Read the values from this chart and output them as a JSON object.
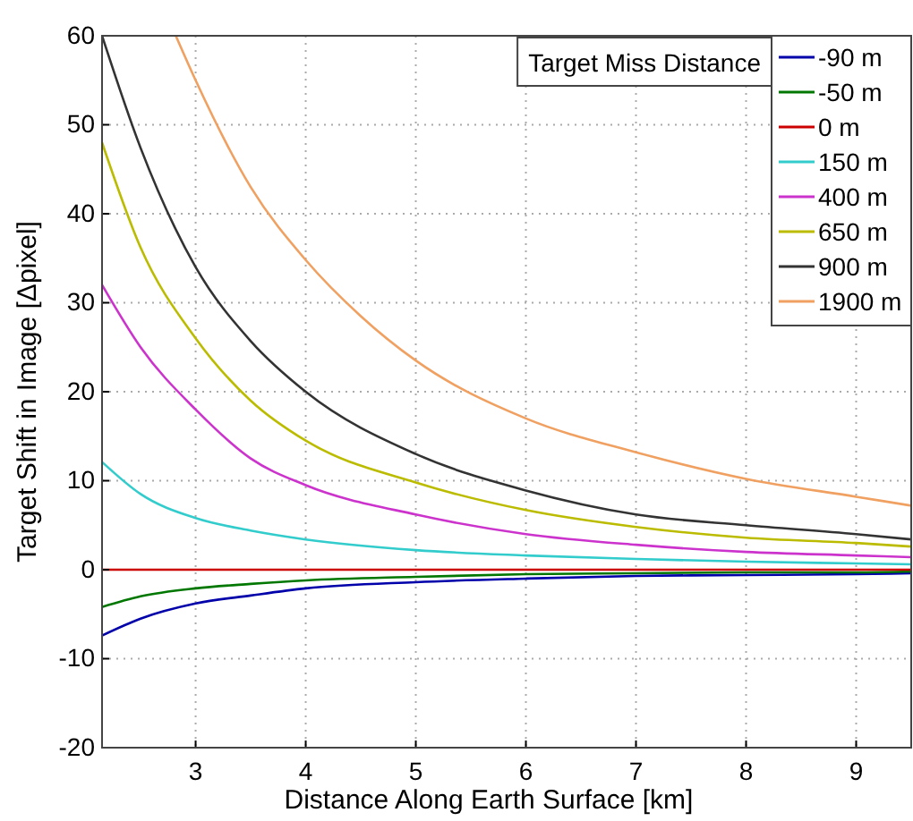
{
  "chart_data": {
    "type": "line",
    "xlabel": "Distance Along Earth Surface [km]",
    "ylabel": "Target Shift in Image [Δpixel]",
    "legend_title": "Target Miss Distance",
    "legend": "top right",
    "grid": true,
    "line_style": "solid",
    "marker": "none",
    "xlim": [
      2.15,
      9.5
    ],
    "ylim": [
      -20,
      60
    ],
    "xticks": [
      3,
      4,
      5,
      6,
      7,
      8,
      9
    ],
    "yticks": [
      -20,
      -10,
      0,
      10,
      20,
      30,
      40,
      50,
      60
    ],
    "series": [
      {
        "name": "-90 m",
        "color": "#0000aa",
        "x": [
          2.15,
          2.5,
          3,
          3.5,
          4,
          5,
          6,
          7,
          8,
          9,
          9.5
        ],
        "values": [
          -7.4,
          -5.5,
          -3.8,
          -2.9,
          -2.1,
          -1.4,
          -1.0,
          -0.7,
          -0.6,
          -0.5,
          -0.4
        ]
      },
      {
        "name": "-50 m",
        "color": "#007700",
        "x": [
          2.15,
          2.5,
          3,
          3.5,
          4,
          5,
          6,
          7,
          8,
          9,
          9.5
        ],
        "values": [
          -4.2,
          -3.0,
          -2.1,
          -1.6,
          -1.2,
          -0.8,
          -0.5,
          -0.4,
          -0.3,
          -0.3,
          -0.2
        ]
      },
      {
        "name": "0 m",
        "color": "#cc0000",
        "x": [
          2.15,
          9.5
        ],
        "values": [
          0,
          0
        ]
      },
      {
        "name": "150 m",
        "color": "#33cccc",
        "x": [
          2.15,
          2.5,
          3,
          3.5,
          4,
          5,
          6,
          7,
          8,
          9,
          9.5
        ],
        "values": [
          12.1,
          8.5,
          5.8,
          4.4,
          3.4,
          2.2,
          1.6,
          1.2,
          0.9,
          0.7,
          0.6
        ]
      },
      {
        "name": "400 m",
        "color": "#cc33cc",
        "x": [
          2.15,
          2.5,
          3,
          3.5,
          4,
          5,
          6,
          7,
          8,
          9,
          9.5
        ],
        "values": [
          32,
          25,
          18,
          12.5,
          9.5,
          6.2,
          4.0,
          2.8,
          2.0,
          1.6,
          1.4
        ]
      },
      {
        "name": "650 m",
        "color": "#bbbb00",
        "x": [
          2.15,
          2.5,
          3,
          3.5,
          4,
          5,
          6,
          7,
          8,
          9,
          9.5
        ],
        "values": [
          48,
          36.2,
          26,
          19,
          14.5,
          9.8,
          6.7,
          4.8,
          3.6,
          3.0,
          2.6
        ]
      },
      {
        "name": "900 m",
        "color": "#333333",
        "x": [
          2.15,
          2.5,
          3,
          3.5,
          4,
          5,
          6,
          7,
          8,
          9,
          9.5
        ],
        "values": [
          60,
          47.4,
          34,
          25.7,
          20,
          13,
          8.9,
          6.2,
          5.0,
          4.0,
          3.4
        ]
      },
      {
        "name": "1900 m",
        "color": "#f0a060",
        "x": [
          2.82,
          3,
          3.5,
          4,
          4.5,
          5,
          6,
          7,
          8,
          9,
          9.5
        ],
        "values": [
          60,
          55,
          43,
          34.8,
          28.5,
          23.5,
          17,
          13.2,
          10.2,
          8.2,
          7.2
        ]
      }
    ]
  }
}
